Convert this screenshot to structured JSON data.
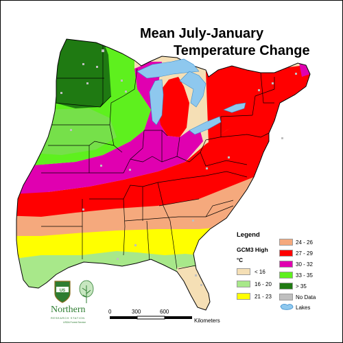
{
  "title": {
    "line1": "Mean July-January",
    "line2": "Temperature Change"
  },
  "legend": {
    "heading": "Legend",
    "subheading": "GCM3 High",
    "unit": "°C",
    "items": [
      {
        "label": "< 16",
        "color": "#f5dfb5"
      },
      {
        "label": "16 - 20",
        "color": "#a8e88a"
      },
      {
        "label": "21 - 23",
        "color": "#ffff00"
      },
      {
        "label": "24 - 26",
        "color": "#f5a97d"
      },
      {
        "label": "27 - 29",
        "color": "#ff0000"
      },
      {
        "label": "30 - 32",
        "color": "#e000b0"
      },
      {
        "label": "33 - 35",
        "color": "#5ef01e"
      },
      {
        "label": "> 35",
        "color": "#1f7a12"
      },
      {
        "label": "No Data",
        "color": "#bfbfbf"
      },
      {
        "label": "Lakes",
        "color": "#8ec8ee"
      }
    ]
  },
  "scale_bar": {
    "ticks": [
      "0",
      "300",
      "600"
    ],
    "unit": "Kilometers"
  },
  "logo": {
    "name": "Northern",
    "subtitle": "RESEARCH STATION",
    "agency": "USDA Forest Service",
    "shield_text": "US"
  }
}
